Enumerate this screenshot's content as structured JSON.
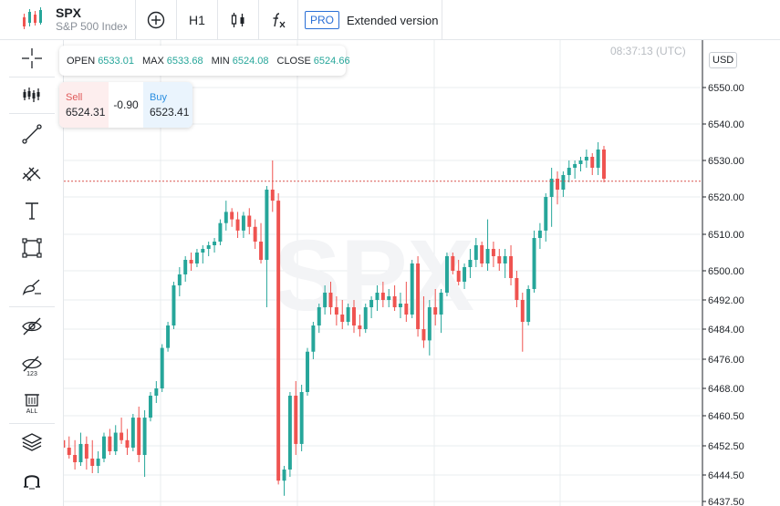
{
  "header": {
    "symbol": "SPX",
    "symbol_name": "S&P 500 Index",
    "timeframe": "H1",
    "pro_label": "PRO",
    "extended_label": "Extended version"
  },
  "left_tools": [
    {
      "icon": "crosshair-icon"
    },
    {
      "icon": "indicators-icon"
    },
    {
      "icon": "trend-line-icon"
    },
    {
      "icon": "fib-tools-icon"
    },
    {
      "icon": "text-tool-icon"
    },
    {
      "icon": "rectangle-tool-icon"
    },
    {
      "icon": "brush-tool-icon"
    },
    {
      "icon": "hide-drawings-icon"
    },
    {
      "icon": "hide-indicators-icon"
    },
    {
      "icon": "delete-all-icon"
    },
    {
      "icon": "layers-icon"
    },
    {
      "icon": "magnet-icon"
    }
  ],
  "timestamp": "08:37:13 (UTC)",
  "currency": "USD",
  "ohlc": {
    "open_label": "OPEN",
    "open": "6533.01",
    "max_label": "MAX",
    "max": "6533.68",
    "min_label": "MIN",
    "min": "6524.08",
    "close_label": "CLOSE",
    "close": "6524.66"
  },
  "trade": {
    "sell_label": "Sell",
    "sell_price": "6524.31",
    "spread": "-0.90",
    "buy_label": "Buy",
    "buy_price": "6523.41"
  },
  "colors": {
    "up": "#26a69a",
    "down": "#ef5350",
    "grid": "#e9ecef",
    "price_line": "#d9534f"
  },
  "chart_data": {
    "type": "candlestick",
    "y_ticks": [
      "6550.00",
      "6540.00",
      "6530.00",
      "6520.00",
      "6510.00",
      "6500.00",
      "6492.00",
      "6484.00",
      "6476.00",
      "6468.00",
      "6460.50",
      "6452.50",
      "6444.50",
      "6437.50"
    ],
    "y_tick_values": [
      6550,
      6540,
      6530,
      6520,
      6510,
      6500,
      6492,
      6484,
      6476,
      6468,
      6460.5,
      6452.5,
      6444.5,
      6437.5
    ],
    "ylim": [
      6437.5,
      6560
    ],
    "current_price": 6524.3,
    "grid": true,
    "candles": [
      [
        6446,
        6455,
        6444,
        6454
      ],
      [
        6454,
        6457,
        6448,
        6452
      ],
      [
        6452,
        6455,
        6449,
        6450
      ],
      [
        6450,
        6454,
        6446,
        6448
      ],
      [
        6448,
        6456,
        6447,
        6453
      ],
      [
        6453,
        6455,
        6446,
        6449
      ],
      [
        6449,
        6454,
        6445,
        6447
      ],
      [
        6447,
        6451,
        6445,
        6449
      ],
      [
        6449,
        6456,
        6448,
        6455
      ],
      [
        6455,
        6457,
        6450,
        6451
      ],
      [
        6451,
        6458,
        6450,
        6456
      ],
      [
        6456,
        6460,
        6453,
        6454
      ],
      [
        6454,
        6457,
        6450,
        6452
      ],
      [
        6452,
        6461,
        6451,
        6460
      ],
      [
        6460,
        6463,
        6448,
        6450
      ],
      [
        6450,
        6462,
        6444,
        6460
      ],
      [
        6460,
        6467,
        6459,
        6466
      ],
      [
        6466,
        6470,
        6464,
        6468
      ],
      [
        6468,
        6480,
        6467,
        6479
      ],
      [
        6479,
        6486,
        6478,
        6485
      ],
      [
        6485,
        6497,
        6484,
        6496
      ],
      [
        6496,
        6501,
        6493,
        6499
      ],
      [
        6499,
        6504,
        6497,
        6503
      ],
      [
        6503,
        6505,
        6500,
        6502
      ],
      [
        6502,
        6506,
        6501,
        6505
      ],
      [
        6505,
        6507,
        6502,
        6506
      ],
      [
        6506,
        6508,
        6504,
        6507
      ],
      [
        6507,
        6509,
        6505,
        6508
      ],
      [
        6508,
        6514,
        6507,
        6513
      ],
      [
        6513,
        6519,
        6511,
        6516
      ],
      [
        6516,
        6517,
        6512,
        6514
      ],
      [
        6514,
        6516,
        6509,
        6511
      ],
      [
        6511,
        6516,
        6509,
        6515
      ],
      [
        6515,
        6517,
        6510,
        6512
      ],
      [
        6512,
        6514,
        6506,
        6508
      ],
      [
        6508,
        6513,
        6502,
        6503
      ],
      [
        6503,
        6523,
        6490,
        6522
      ],
      [
        6522,
        6530,
        6516,
        6519
      ],
      [
        6519,
        6521,
        6442,
        6443
      ],
      [
        6443,
        6447,
        6439,
        6446
      ],
      [
        6446,
        6467,
        6444,
        6466
      ],
      [
        6466,
        6470,
        6450,
        6453
      ],
      [
        6453,
        6469,
        6451,
        6467
      ],
      [
        6467,
        6479,
        6466,
        6478
      ],
      [
        6478,
        6486,
        6476,
        6485
      ],
      [
        6485,
        6491,
        6483,
        6490
      ],
      [
        6490,
        6496,
        6488,
        6494
      ],
      [
        6494,
        6497,
        6488,
        6490
      ],
      [
        6490,
        6493,
        6485,
        6488
      ],
      [
        6488,
        6492,
        6484,
        6486
      ],
      [
        6486,
        6491,
        6485,
        6490
      ],
      [
        6490,
        6492,
        6483,
        6485
      ],
      [
        6485,
        6488,
        6482,
        6484
      ],
      [
        6484,
        6491,
        6483,
        6490
      ],
      [
        6490,
        6493,
        6487,
        6492
      ],
      [
        6492,
        6496,
        6489,
        6494
      ],
      [
        6494,
        6497,
        6490,
        6492
      ],
      [
        6492,
        6495,
        6490,
        6493
      ],
      [
        6493,
        6496,
        6489,
        6490
      ],
      [
        6490,
        6494,
        6487,
        6491
      ],
      [
        6491,
        6497,
        6486,
        6488
      ],
      [
        6488,
        6503,
        6487,
        6502
      ],
      [
        6502,
        6504,
        6482,
        6484
      ],
      [
        6484,
        6493,
        6479,
        6481
      ],
      [
        6481,
        6492,
        6477,
        6490
      ],
      [
        6490,
        6495,
        6485,
        6488
      ],
      [
        6488,
        6495,
        6483,
        6494
      ],
      [
        6494,
        6505,
        6493,
        6504
      ],
      [
        6504,
        6505,
        6499,
        6500
      ],
      [
        6500,
        6503,
        6496,
        6497
      ],
      [
        6497,
        6502,
        6495,
        6501
      ],
      [
        6501,
        6506,
        6498,
        6503
      ],
      [
        6503,
        6509,
        6501,
        6507
      ],
      [
        6507,
        6508,
        6501,
        6502
      ],
      [
        6502,
        6514,
        6500,
        6506
      ],
      [
        6506,
        6508,
        6501,
        6504
      ],
      [
        6504,
        6506,
        6500,
        6502
      ],
      [
        6502,
        6506,
        6498,
        6504
      ],
      [
        6504,
        6507,
        6496,
        6498
      ],
      [
        6498,
        6500,
        6490,
        6492
      ],
      [
        6492,
        6494,
        6478,
        6486
      ],
      [
        6486,
        6496,
        6485,
        6495
      ],
      [
        6495,
        6511,
        6494,
        6509
      ],
      [
        6509,
        6513,
        6506,
        6511
      ],
      [
        6511,
        6521,
        6508,
        6520
      ],
      [
        6520,
        6528,
        6512,
        6525
      ],
      [
        6525,
        6527,
        6518,
        6522
      ],
      [
        6522,
        6527,
        6520,
        6526
      ],
      [
        6526,
        6530,
        6524,
        6528
      ],
      [
        6528,
        6530,
        6525,
        6529
      ],
      [
        6529,
        6531,
        6527,
        6530
      ],
      [
        6530,
        6533,
        6528,
        6531
      ],
      [
        6531,
        6532,
        6526,
        6528
      ],
      [
        6528,
        6535,
        6526,
        6533
      ],
      [
        6533,
        6534,
        6524,
        6525
      ]
    ]
  }
}
